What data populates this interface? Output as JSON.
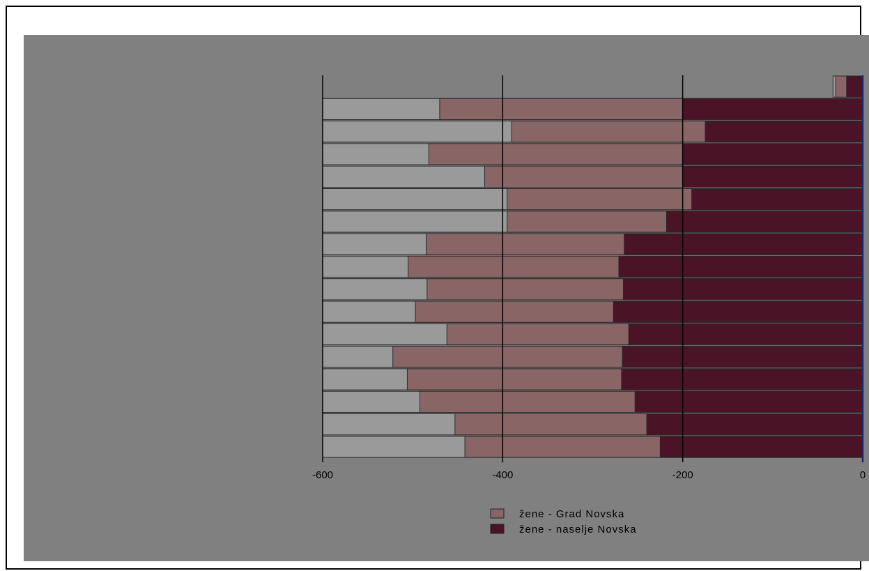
{
  "chart_data": {
    "type": "bar",
    "orientation": "horizontal",
    "stacking": "overlay",
    "xlim": [
      -600,
      0
    ],
    "xticks": [
      -600,
      -400,
      -200,
      0
    ],
    "xtick_labels": [
      "-600",
      "-400",
      "-200",
      "0"
    ],
    "grid": "vertical",
    "legend_position": "bottom-center",
    "series": [
      {
        "name": "žene - Grad Novska",
        "color": "#8a6566",
        "values": [
          -30,
          -470,
          -390,
          -482,
          -420,
          -395,
          -395,
          -485,
          -505,
          -484,
          -497,
          -462,
          -522,
          -506,
          -492,
          -453,
          -442
        ]
      },
      {
        "name": "žene - naselje Novska",
        "color": "#4a1426",
        "values": [
          -18,
          -200,
          -175,
          -200,
          -200,
          -190,
          -218,
          -265,
          -271,
          -266,
          -277,
          -260,
          -267,
          -268,
          -253,
          -240,
          -225
        ]
      }
    ],
    "background_series_values": [
      -33,
      -600,
      -600,
      -600,
      -600,
      -600,
      -600,
      -600,
      -600,
      -600,
      -600,
      -600,
      -600,
      -600,
      -600,
      -600,
      -600
    ],
    "background_series_color": "#9a9a9a"
  },
  "colors": {
    "panel": "#808080",
    "gridline": "#000000",
    "axis_zero": "#1a2a66",
    "bar_border": "#2a2a2a"
  }
}
